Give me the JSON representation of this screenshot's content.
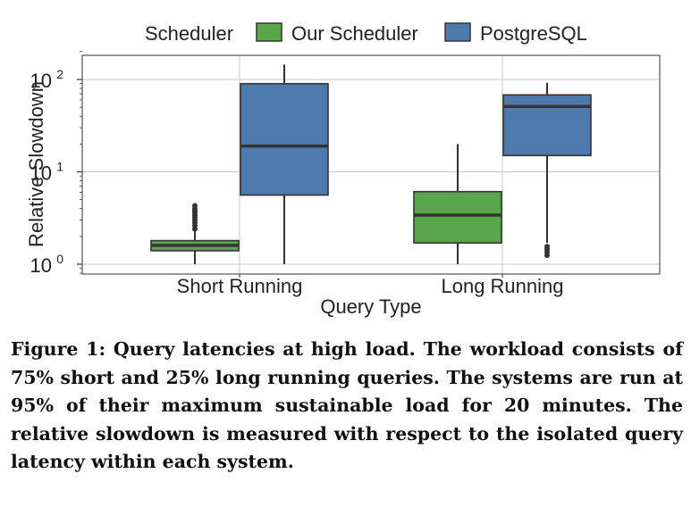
{
  "chart_data": {
    "type": "box",
    "legend_title": "Scheduler",
    "legend_placement": "top",
    "xlabel": "Query Type",
    "ylabel": "Relative Slowdown",
    "yscale": "log",
    "ylim": [
      0.8,
      200
    ],
    "yticks": [
      1,
      10,
      100
    ],
    "ytick_labels": [
      {
        "base": "10",
        "exp": "0"
      },
      {
        "base": "10",
        "exp": "1"
      },
      {
        "base": "10",
        "exp": "2"
      }
    ],
    "grid": true,
    "categories": [
      "Short Running",
      "Long Running"
    ],
    "series": [
      {
        "name": "Our Scheduler",
        "color": "#5aa64b",
        "boxes": [
          {
            "whisker_low": 1.0,
            "q1": 1.4,
            "median": 1.6,
            "q3": 1.8,
            "whisker_high": 2.3,
            "outliers": [
              2.4,
              2.6,
              2.8,
              3.0,
              3.2,
              3.4,
              3.6,
              3.8,
              4.0,
              4.3
            ]
          },
          {
            "whisker_low": 1.0,
            "q1": 1.7,
            "median": 3.4,
            "q3": 6.1,
            "whisker_high": 20.0,
            "outliers": []
          }
        ]
      },
      {
        "name": "PostgreSQL",
        "color": "#4e79ad",
        "boxes": [
          {
            "whisker_low": 1.0,
            "q1": 5.6,
            "median": 19.0,
            "q3": 90.0,
            "whisker_high": 145.0,
            "outliers": []
          },
          {
            "whisker_low": 1.7,
            "q1": 15.0,
            "median": 51.0,
            "q3": 68.0,
            "whisker_high": 92.0,
            "outliers": [
              1.25,
              1.35,
              1.45,
              1.55
            ]
          }
        ]
      }
    ]
  },
  "caption": "Figure 1: Query latencies at high load. The workload consists of 75% short and 25% long running queries. The systems are run at 95% of their maximum sustainable load for 20 minutes. The relative slowdown is measured with respect to the isolated query latency within each system."
}
